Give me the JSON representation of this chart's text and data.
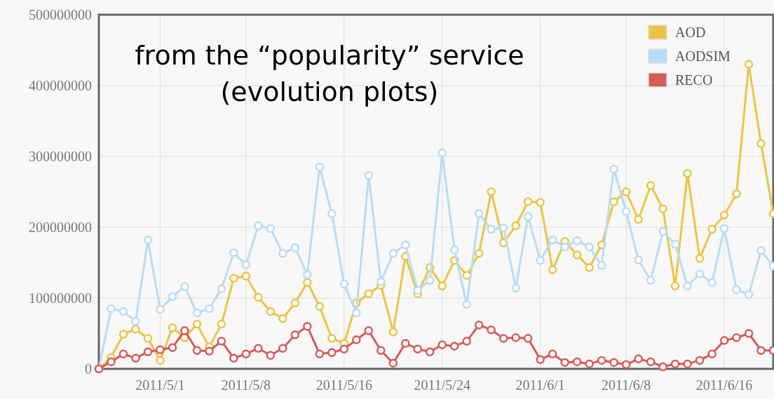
{
  "chart_data": {
    "type": "line",
    "title": "from the “popularity” service\n(evolution plots)",
    "x": [
      "2011-04-26",
      "2011-04-27",
      "2011-04-28",
      "2011-04-29",
      "2011-04-30",
      "2011-05-01",
      "2011-05-02",
      "2011-05-03",
      "2011-05-04",
      "2011-05-05",
      "2011-05-06",
      "2011-05-07",
      "2011-05-08",
      "2011-05-09",
      "2011-05-10",
      "2011-05-11",
      "2011-05-12",
      "2011-05-13",
      "2011-05-14",
      "2011-05-15",
      "2011-05-16",
      "2011-05-17",
      "2011-05-18",
      "2011-05-19",
      "2011-05-20",
      "2011-05-21",
      "2011-05-22",
      "2011-05-23",
      "2011-05-24",
      "2011-05-25",
      "2011-05-26",
      "2011-05-27",
      "2011-05-28",
      "2011-05-29",
      "2011-05-30",
      "2011-05-31",
      "2011-06-01",
      "2011-06-02",
      "2011-06-03",
      "2011-06-04",
      "2011-06-05",
      "2011-06-06",
      "2011-06-07",
      "2011-06-08",
      "2011-06-09",
      "2011-06-10",
      "2011-06-11",
      "2011-06-12",
      "2011-06-13",
      "2011-06-14",
      "2011-06-15",
      "2011-06-16",
      "2011-06-17",
      "2011-06-18",
      "2011-06-19",
      "2011-06-20"
    ],
    "series": [
      {
        "name": "AOD",
        "color": "#ecc443",
        "values": [
          0,
          16000000,
          49000000,
          56000000,
          43000000,
          12000000,
          58000000,
          44000000,
          63000000,
          31000000,
          63000000,
          128000000,
          131000000,
          101000000,
          81000000,
          71000000,
          93000000,
          122000000,
          88000000,
          43000000,
          36000000,
          93000000,
          106000000,
          118000000,
          52000000,
          159000000,
          106000000,
          143000000,
          117000000,
          153000000,
          132000000,
          163000000,
          250000000,
          178000000,
          202000000,
          236000000,
          235000000,
          140000000,
          180000000,
          161000000,
          143000000,
          175000000,
          236000000,
          250000000,
          211000000,
          259000000,
          226000000,
          117000000,
          276000000,
          156000000,
          197000000,
          217000000,
          247000000,
          430000000,
          318000000,
          219000000
        ]
      },
      {
        "name": "AODSIM",
        "color": "#b9dcf4",
        "values": [
          0,
          85000000,
          81000000,
          67000000,
          182000000,
          84000000,
          102000000,
          116000000,
          79000000,
          85000000,
          113000000,
          164000000,
          147000000,
          202000000,
          198000000,
          163000000,
          171000000,
          133000000,
          285000000,
          219000000,
          120000000,
          79000000,
          273000000,
          123000000,
          163000000,
          175000000,
          111000000,
          125000000,
          305000000,
          168000000,
          91000000,
          219000000,
          197000000,
          199000000,
          114000000,
          215000000,
          153000000,
          182000000,
          172000000,
          181000000,
          172000000,
          146000000,
          282000000,
          222000000,
          154000000,
          125000000,
          194000000,
          176000000,
          117000000,
          134000000,
          122000000,
          198000000,
          112000000,
          105000000,
          167000000,
          145000000
        ]
      },
      {
        "name": "RECO",
        "color": "#d65a58",
        "values": [
          0,
          10000000,
          21000000,
          15000000,
          24000000,
          27000000,
          30000000,
          54000000,
          26000000,
          25000000,
          39000000,
          15000000,
          21000000,
          29000000,
          19000000,
          29000000,
          48000000,
          60000000,
          21000000,
          23000000,
          28000000,
          41000000,
          54000000,
          26000000,
          8000000,
          36000000,
          28000000,
          24000000,
          34000000,
          32000000,
          39000000,
          62000000,
          55000000,
          43000000,
          44000000,
          43000000,
          13000000,
          21000000,
          9000000,
          10000000,
          7000000,
          12000000,
          9000000,
          6000000,
          14000000,
          10000000,
          3000000,
          7000000,
          7000000,
          12000000,
          21000000,
          40000000,
          44000000,
          50000000,
          26000000,
          26000000
        ]
      }
    ],
    "xlim": [
      "2011-04-26",
      "2011-06-20"
    ],
    "xticks": [
      {
        "value": "2011-05-01",
        "label": "2011/5/1"
      },
      {
        "value": "2011-05-08",
        "label": "2011/5/8"
      },
      {
        "value": "2011-05-16",
        "label": "2011/5/16"
      },
      {
        "value": "2011-05-24",
        "label": "2011/5/24"
      },
      {
        "value": "2011-06-01",
        "label": "2011/6/1"
      },
      {
        "value": "2011-06-08",
        "label": "2011/6/8"
      },
      {
        "value": "2011-06-16",
        "label": "2011/6/16"
      }
    ],
    "ylim": [
      0,
      500000000
    ],
    "yticks": [
      0,
      100000000,
      200000000,
      300000000,
      400000000,
      500000000
    ],
    "grid": true,
    "legend": "top right",
    "marker": "circle",
    "line_style": "solid"
  }
}
